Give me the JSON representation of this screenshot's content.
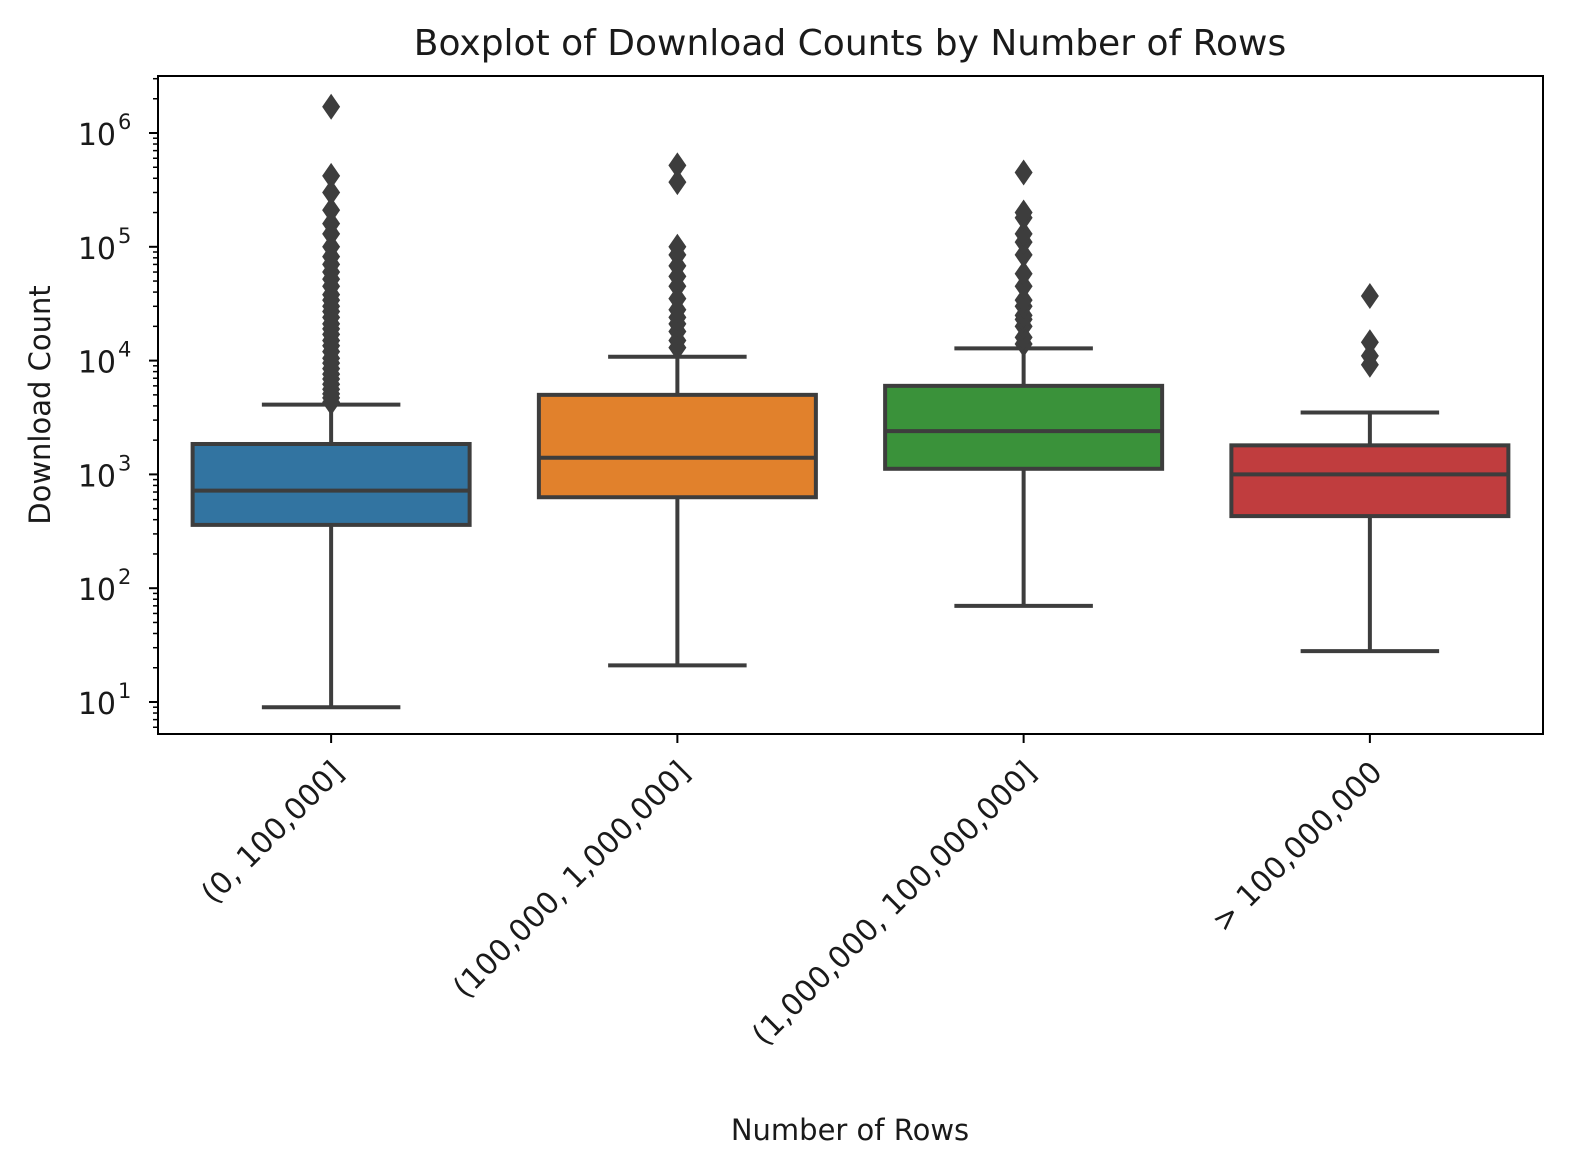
{
  "chart_data": {
    "type": "boxplot",
    "title": "Boxplot of Download Counts by Number of Rows",
    "xlabel": "Number of Rows",
    "ylabel": "Download Count",
    "yscale": "log",
    "ylim": [
      5,
      3000000
    ],
    "yticks": [
      10,
      100,
      1000,
      10000,
      100000,
      1000000
    ],
    "ytick_labels": [
      {
        "base": "10",
        "exp": "1"
      },
      {
        "base": "10",
        "exp": "2"
      },
      {
        "base": "10",
        "exp": "3"
      },
      {
        "base": "10",
        "exp": "4"
      },
      {
        "base": "10",
        "exp": "5"
      },
      {
        "base": "10",
        "exp": "6"
      }
    ],
    "grid": false,
    "categories": [
      "(0, 100,000]",
      "(100,000, 1,000,000]",
      "(1,000,000, 100,000,000]",
      "> 100,000,000"
    ],
    "boxes": [
      {
        "category": "(0, 100,000]",
        "color": "#3274a1",
        "whisker_low": 9,
        "q1": 360,
        "median": 720,
        "q3": 1850,
        "whisker_high": 4100,
        "outliers": [
          4300,
          4700,
          5100,
          5600,
          6200,
          6900,
          7600,
          8500,
          9500,
          10500,
          12000,
          13500,
          15000,
          17000,
          19000,
          21000,
          24000,
          27000,
          30000,
          34000,
          38000,
          45000,
          52000,
          60000,
          70000,
          82000,
          100000,
          130000,
          160000,
          210000,
          300000,
          420000,
          1700000
        ]
      },
      {
        "category": "(100,000, 1,000,000]",
        "color": "#e1812c",
        "whisker_low": 21,
        "q1": 630,
        "median": 1400,
        "q3": 5000,
        "whisker_high": 10800,
        "outliers": [
          13000,
          15000,
          18000,
          21000,
          24000,
          28000,
          35000,
          45000,
          55000,
          68000,
          85000,
          100000,
          370000,
          520000
        ]
      },
      {
        "category": "(1,000,000, 100,000,000]",
        "color": "#3a923a",
        "whisker_low": 70,
        "q1": 1120,
        "median": 2400,
        "q3": 6000,
        "whisker_high": 12800,
        "outliers": [
          14000,
          16000,
          20000,
          23000,
          25000,
          30000,
          34000,
          45000,
          58000,
          85000,
          110000,
          130000,
          180000,
          200000,
          450000
        ]
      },
      {
        "category": "> 100,000,000",
        "color": "#c03d3e",
        "whisker_low": 28,
        "q1": 430,
        "median": 1000,
        "q3": 1800,
        "whisker_high": 3500,
        "outliers": [
          9200,
          11000,
          14500,
          37000
        ]
      }
    ]
  }
}
